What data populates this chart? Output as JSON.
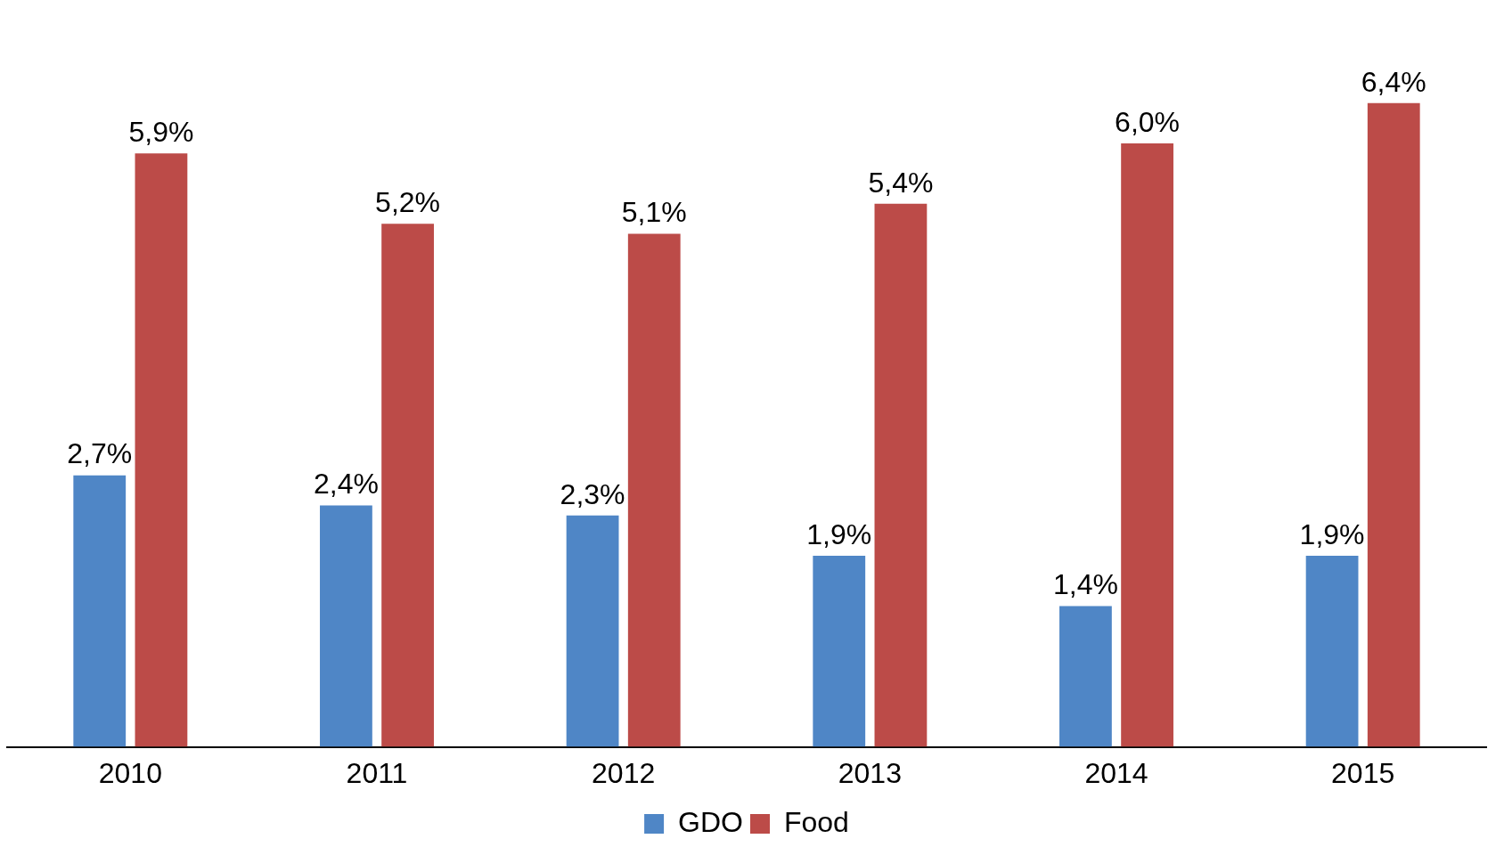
{
  "chart_data": {
    "type": "bar",
    "categories": [
      "2010",
      "2011",
      "2012",
      "2013",
      "2014",
      "2015"
    ],
    "series": [
      {
        "name": "GDO",
        "color": "#4f86c6",
        "values": [
          2.7,
          2.4,
          2.3,
          1.9,
          1.4,
          1.9
        ],
        "value_labels": [
          "2,7%",
          "2,4%",
          "2,3%",
          "1,9%",
          "1,4%",
          "1,9%"
        ]
      },
      {
        "name": "Food",
        "color": "#bc4b48",
        "values": [
          5.9,
          5.2,
          5.1,
          5.4,
          6.0,
          6.4
        ],
        "value_labels": [
          "5,9%",
          "5,2%",
          "5,1%",
          "5,4%",
          "6,0%",
          "6,4%"
        ]
      }
    ],
    "legend": "bottom",
    "grid": false,
    "tick_labels": "x"
  }
}
